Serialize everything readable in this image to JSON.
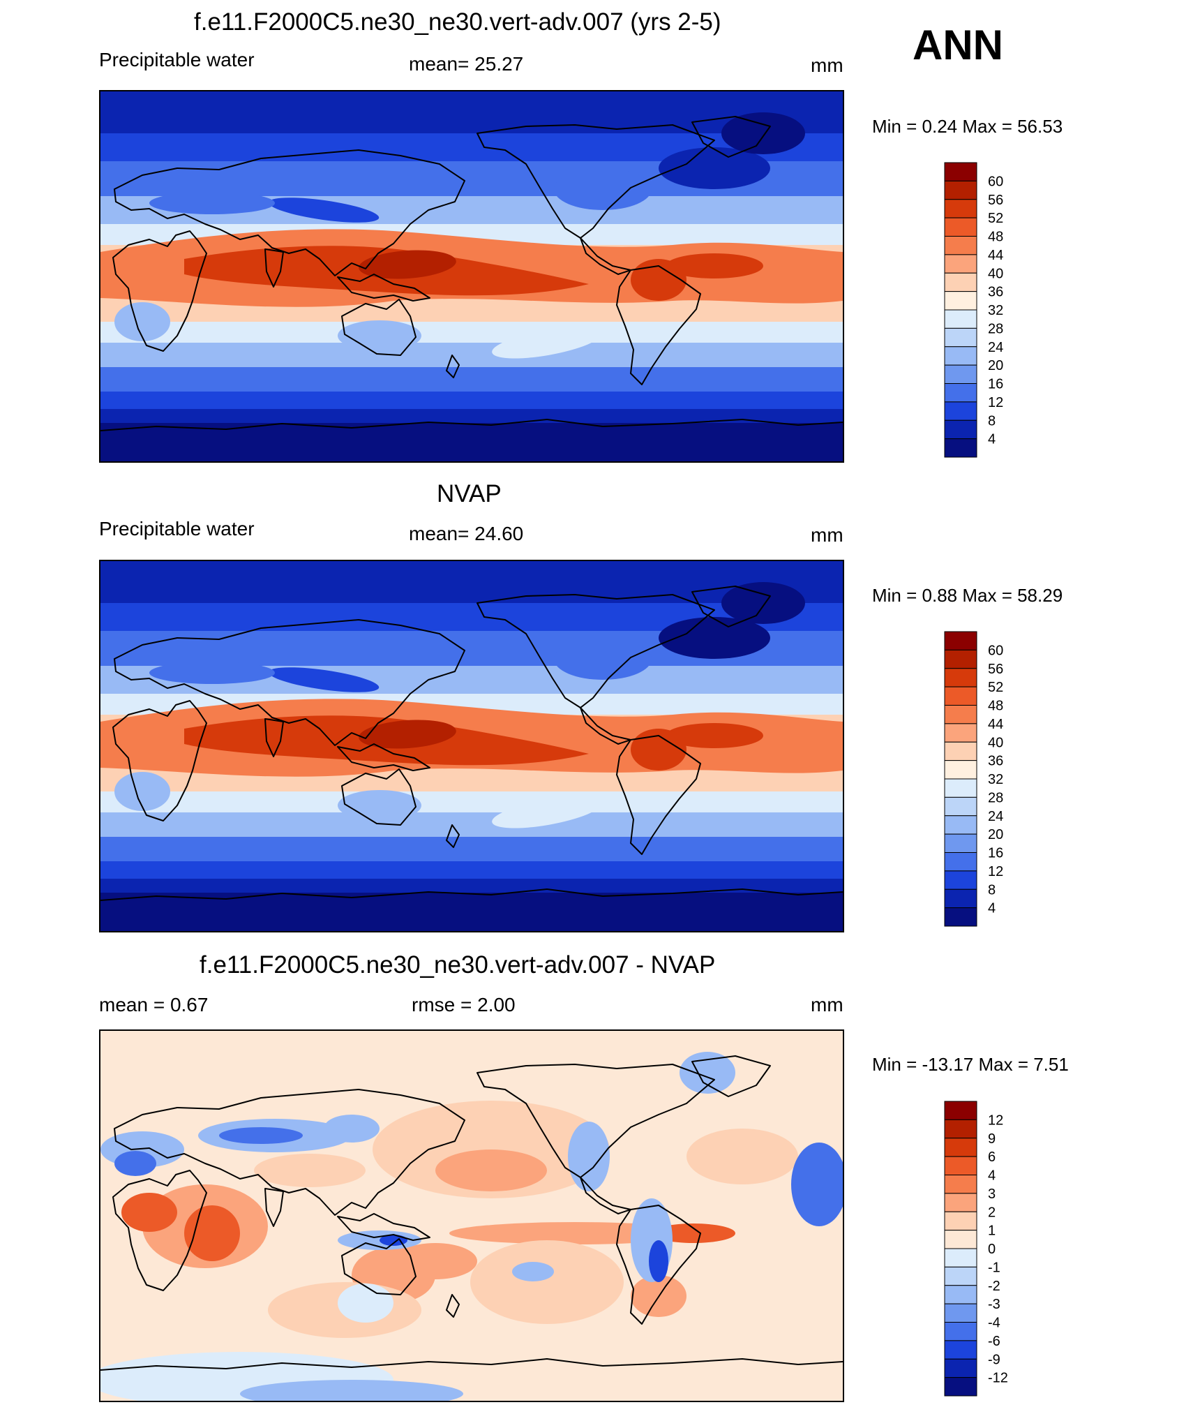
{
  "season": "ANN",
  "units": "mm",
  "panels": [
    {
      "id": "model",
      "title": "f.e11.F2000C5.ne30_ne30.vert-adv.007 (yrs 2-5)",
      "left_label": "Precipitable water",
      "center_label": "mean=  25.27",
      "right_label": "mm",
      "minmax": "Min =    0.24 Max =   56.53",
      "legend_type": "abs"
    },
    {
      "id": "obs",
      "title": "NVAP",
      "left_label": "Precipitable water",
      "center_label": "mean=  24.60",
      "right_label": "mm",
      "minmax": "Min =    0.88 Max =   58.29",
      "legend_type": "abs"
    },
    {
      "id": "diff",
      "title": "f.e11.F2000C5.ne30_ne30.vert-adv.007 - NVAP",
      "left_label": "mean =    0.67",
      "center_label": "rmse =    2.00",
      "right_label": "mm",
      "minmax": "Min = -13.17 Max =    7.51",
      "legend_type": "diff"
    }
  ],
  "legends": {
    "abs": {
      "levels": [
        "60",
        "56",
        "52",
        "48",
        "44",
        "40",
        "36",
        "32",
        "28",
        "24",
        "20",
        "16",
        "12",
        "8",
        "4"
      ],
      "colors": [
        "#8b0000",
        "#b32000",
        "#d63a0b",
        "#ec5a28",
        "#f57d4c",
        "#fba47c",
        "#fdd1b4",
        "#fff0e0",
        "#dcecfb",
        "#bcd5f8",
        "#98baf5",
        "#6f98ef",
        "#4470ea",
        "#1c44dc",
        "#0b24b0",
        "#060f80"
      ]
    },
    "diff": {
      "levels": [
        "12",
        "9",
        "6",
        "4",
        "3",
        "2",
        "1",
        "0",
        "-1",
        "-2",
        "-3",
        "-4",
        "-6",
        "-9",
        "-12"
      ],
      "colors": [
        "#8b0000",
        "#b32000",
        "#d63a0b",
        "#ec5a28",
        "#f57d4c",
        "#fba47c",
        "#fdd1b4",
        "#fde8d6",
        "#dcecfb",
        "#bcd5f8",
        "#98baf5",
        "#6f98ef",
        "#4470ea",
        "#1c44dc",
        "#0b24b0",
        "#060f80"
      ]
    }
  },
  "map_palettes": {
    "abs": {
      "deep_polar": "#060f80",
      "polar": "#0b24b0",
      "high_lat": "#1c44dc",
      "mid_lat": "#4470ea",
      "subtrop": "#98baf5",
      "subtrop_light": "#dcecfb",
      "trop_edge": "#fdd1b4",
      "trop": "#f57d4c",
      "trop_core": "#d63a0b",
      "max": "#b32000"
    },
    "diff": {
      "base": "#fde8d6",
      "pos1": "#fdd1b4",
      "pos2": "#fba47c",
      "pos3": "#ec5a28",
      "pos4": "#d63a0b",
      "neg1": "#dcecfb",
      "neg2": "#98baf5",
      "neg3": "#4470ea",
      "neg4": "#1c44dc"
    },
    "coast": "#000000"
  }
}
